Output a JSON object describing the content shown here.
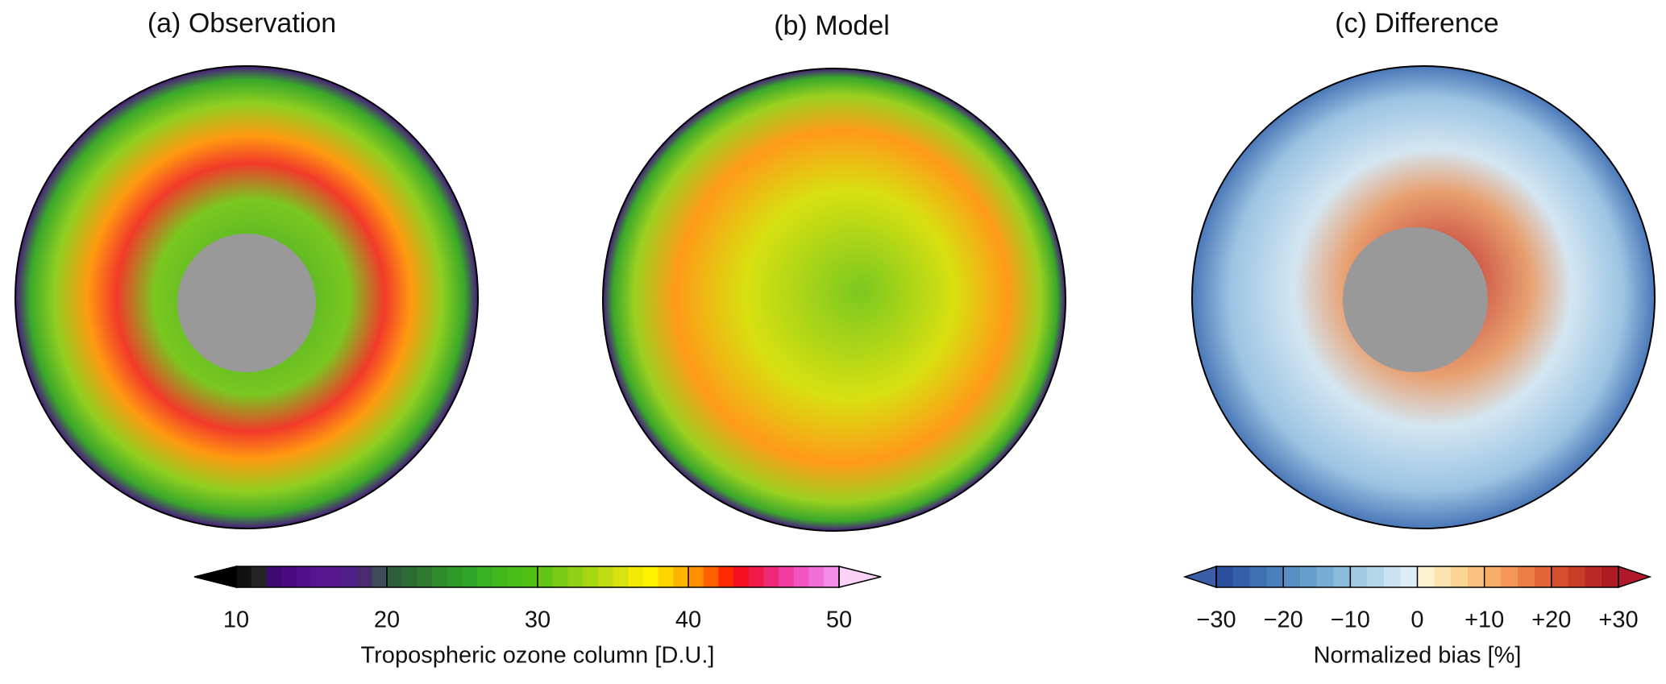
{
  "panels": [
    {
      "title": "(a) Observation"
    },
    {
      "title": "(b) Model"
    },
    {
      "title": "(c) Difference"
    }
  ],
  "colorbars": [
    {
      "label": "Tropospheric ozone column [D.U.]",
      "lim": [
        10,
        50
      ],
      "ticks": [
        10,
        20,
        30,
        40,
        50
      ],
      "colors": [
        "#111111",
        "#242424",
        "#3d0a6e",
        "#4b0a80",
        "#52108a",
        "#56148e",
        "#54188c",
        "#502088",
        "#4a2a6e",
        "#3f4a5a",
        "#2f5f3a",
        "#2d6b35",
        "#2f7a30",
        "#2e8a2a",
        "#2e9828",
        "#30a525",
        "#38b020",
        "#40b81c",
        "#48bd18",
        "#50c015",
        "#62c515",
        "#7acb15",
        "#90d015",
        "#a8d615",
        "#c0dc15",
        "#d8e210",
        "#f0ea05",
        "#fff200",
        "#ffd500",
        "#ffb400",
        "#ff9000",
        "#ff6000",
        "#ff2a00",
        "#f50f20",
        "#ee1a4a",
        "#ee2a78",
        "#f03ca0",
        "#f055c0",
        "#f070d8",
        "#f48ee8"
      ],
      "extend_colors": [
        "#000000",
        "#f9d3f5"
      ]
    },
    {
      "label": "Normalized bias [%]",
      "lim": [
        -30,
        30
      ],
      "ticks": [
        {
          "value": -30,
          "label": "−30"
        },
        {
          "value": -20,
          "label": "−20"
        },
        {
          "value": -10,
          "label": "−10"
        },
        {
          "value": 0,
          "label": "0"
        },
        {
          "value": 10,
          "label": "+10"
        },
        {
          "value": 20,
          "label": "+20"
        },
        {
          "value": 30,
          "label": "+30"
        }
      ],
      "colors": [
        "#2c4f9e",
        "#3560a8",
        "#3f70b2",
        "#4a80bb",
        "#5890c3",
        "#66a0cb",
        "#78aed3",
        "#8cbcdb",
        "#a0c9e2",
        "#b4d6e9",
        "#c8e2f0",
        "#dcedf6",
        "#fdf3d0",
        "#fde4b0",
        "#fcd496",
        "#fbc27e",
        "#f8ad68",
        "#f39656",
        "#ec7e46",
        "#e26638",
        "#d6502e",
        "#c93c28",
        "#bb2a24",
        "#ad1c22"
      ],
      "extend_colors": [
        "#3a5fa8",
        "#b2182b"
      ]
    }
  ]
}
